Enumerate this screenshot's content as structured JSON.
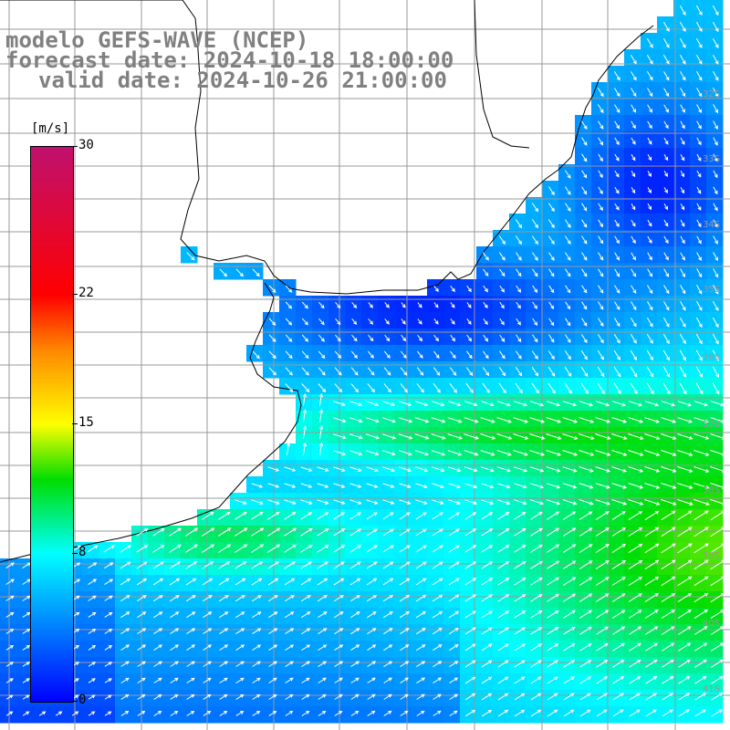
{
  "title": {
    "model": "modelo GEFS-WAVE (NCEP)",
    "forecast": "forecast date: 2024-10-18 18:00:00",
    "valid": "valid date: 2024-10-26 21:00:00"
  },
  "colorbar": {
    "unit": "[m/s]",
    "ticks": [
      "30",
      "22",
      "15",
      "8",
      "0"
    ],
    "tick_values": [
      30,
      22,
      15,
      8,
      0
    ],
    "min": 0,
    "max": 30,
    "stops": [
      {
        "v": 0,
        "c": "#0000ff"
      },
      {
        "v": 8,
        "c": "#00ffff"
      },
      {
        "v": 12,
        "c": "#00dd00"
      },
      {
        "v": 15,
        "c": "#ffff00"
      },
      {
        "v": 19,
        "c": "#ff8800"
      },
      {
        "v": 22,
        "c": "#ff0000"
      },
      {
        "v": 30,
        "c": "#c0106e"
      }
    ]
  },
  "lat_labels": [
    "32S",
    "33S",
    "34S",
    "35S",
    "36S",
    "37S",
    "38S",
    "39S",
    "40S",
    "41S"
  ],
  "colors": {
    "land": "#ffffff",
    "grid": "#999999",
    "coast": "#000000",
    "arrow": "#ffffff"
  }
}
